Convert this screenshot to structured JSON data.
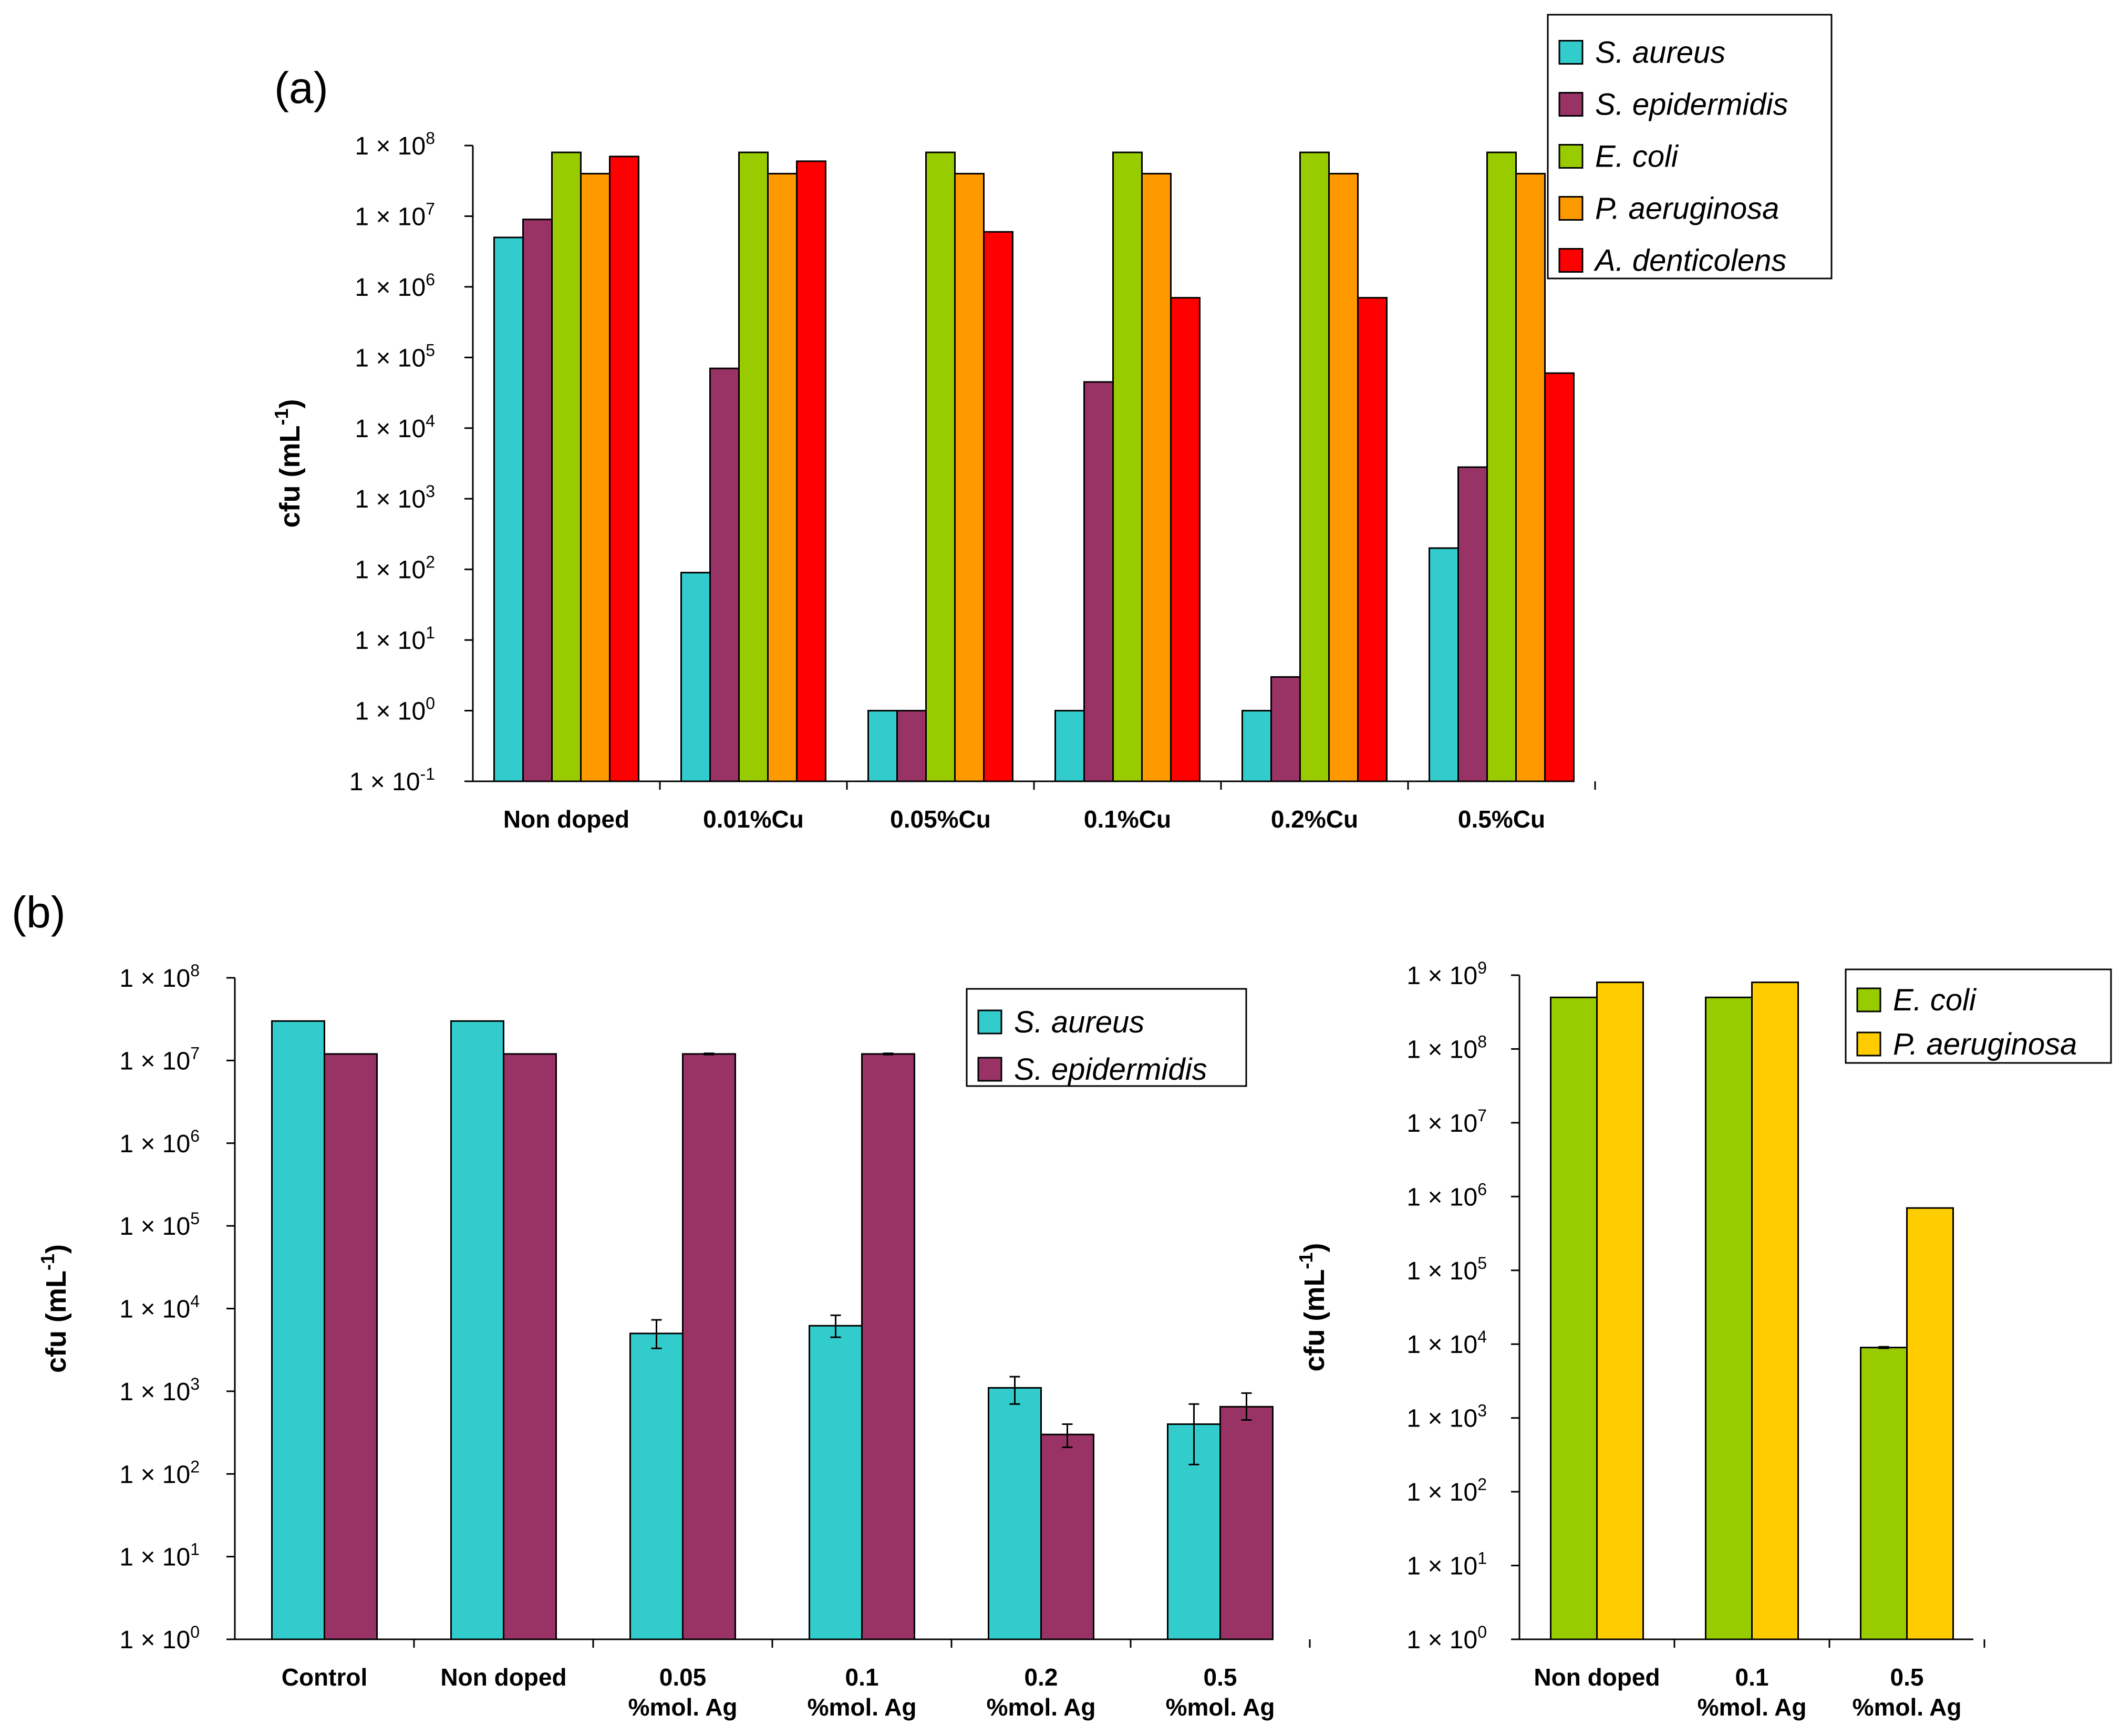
{
  "colors": {
    "s_aureus": "#33CCCC",
    "s_epidermidis": "#993366",
    "e_coli": "#99CC00",
    "p_aeruginosa_a": "#FF9900",
    "p_aeruginosa_b": "#FFCC00",
    "a_denticolens": "#FF0000"
  },
  "chart_data": [
    {
      "id": "a",
      "panel_label": "(a)",
      "type": "bar",
      "yscale": "log10",
      "ylabel": "cfu (mL-1)",
      "ylabel_main": "cfu (mL",
      "ylabel_sup": "-1",
      "ylabel_close": ")",
      "ylim_exp": [
        -1,
        8
      ],
      "ytick_base": "1 × 10",
      "ytick_exps": [
        "-1",
        "0",
        "1",
        "2",
        "3",
        "4",
        "5",
        "6",
        "7",
        "8"
      ],
      "categories": [
        [
          "Non doped"
        ],
        [
          "0.01%Cu"
        ],
        [
          "0.05%Cu"
        ],
        [
          "0.1%Cu"
        ],
        [
          "0.2%Cu"
        ],
        [
          "0.5%Cu"
        ]
      ],
      "legend_position": "top-right",
      "series": [
        {
          "name": "S. aureus",
          "color_key": "s_aureus",
          "values": [
            5000000,
            90,
            1,
            1,
            1,
            200
          ]
        },
        {
          "name": "S. epidermidis",
          "color_key": "s_epidermidis",
          "values": [
            9000000,
            70000,
            1,
            45000,
            3,
            2800
          ]
        },
        {
          "name": "E. coli",
          "color_key": "e_coli",
          "values": [
            80000000,
            80000000,
            80000000,
            80000000,
            80000000,
            80000000
          ]
        },
        {
          "name": "P. aeruginosa",
          "color_key": "p_aeruginosa_a",
          "values": [
            40000000,
            40000000,
            40000000,
            40000000,
            40000000,
            40000000
          ]
        },
        {
          "name": "A. denticolens",
          "color_key": "a_denticolens",
          "values": [
            70000000,
            60000000,
            6000000,
            700000,
            700000,
            60000
          ]
        }
      ]
    },
    {
      "id": "b1",
      "panel_label": "(b)",
      "type": "bar",
      "yscale": "log10",
      "ylabel": "cfu (mL-1)",
      "ylabel_main": "cfu (mL",
      "ylabel_sup": "-1",
      "ylabel_close": ")",
      "ylim_exp": [
        0,
        8
      ],
      "ytick_base": "1 × 10",
      "ytick_exps": [
        "0",
        "1",
        "2",
        "3",
        "4",
        "5",
        "6",
        "7",
        "8"
      ],
      "categories": [
        [
          "Control"
        ],
        [
          "Non doped"
        ],
        [
          "0.05",
          "%mol. Ag"
        ],
        [
          "0.1",
          "%mol. Ag"
        ],
        [
          "0.2",
          "%mol. Ag"
        ],
        [
          "0.5",
          "%mol. Ag"
        ]
      ],
      "legend_position": "top-right",
      "series": [
        {
          "name": "S. aureus",
          "color_key": "s_aureus",
          "values": [
            30000000,
            30000000,
            5000,
            6200,
            1100,
            400
          ],
          "error": [
            null,
            null,
            [
              3300,
              7300
            ],
            [
              4500,
              8300
            ],
            [
              700,
              1500
            ],
            [
              130,
              700
            ]
          ]
        },
        {
          "name": "S. epidermidis",
          "color_key": "s_epidermidis",
          "values": [
            12000000,
            12000000,
            12000000,
            12000000,
            300,
            650
          ],
          "error": [
            null,
            null,
            [
              11800000,
              12200000
            ],
            [
              11800000,
              12200000
            ],
            [
              210,
              400
            ],
            [
              450,
              950
            ]
          ]
        }
      ]
    },
    {
      "id": "b2",
      "panel_label": "",
      "type": "bar",
      "yscale": "log10",
      "ylabel": "cfu (mL-1)",
      "ylabel_main": "cfu (mL",
      "ylabel_sup": "-1",
      "ylabel_close": ")",
      "ylim_exp": [
        0,
        9
      ],
      "ytick_base": "1 × 10",
      "ytick_exps": [
        "0",
        "1",
        "2",
        "3",
        "4",
        "5",
        "6",
        "7",
        "8",
        "9"
      ],
      "categories": [
        [
          "Non doped"
        ],
        [
          "0.1",
          "%mol. Ag"
        ],
        [
          "0.5",
          "%mol. Ag"
        ]
      ],
      "legend_position": "top-right",
      "series": [
        {
          "name": "E. coli",
          "color_key": "e_coli",
          "values": [
            500000000,
            500000000,
            9000
          ],
          "error": [
            null,
            null,
            [
              8800,
              9200
            ]
          ]
        },
        {
          "name": "P. aeruginosa",
          "color_key": "p_aeruginosa_b",
          "values": [
            800000000,
            800000000,
            700000
          ]
        }
      ]
    }
  ]
}
